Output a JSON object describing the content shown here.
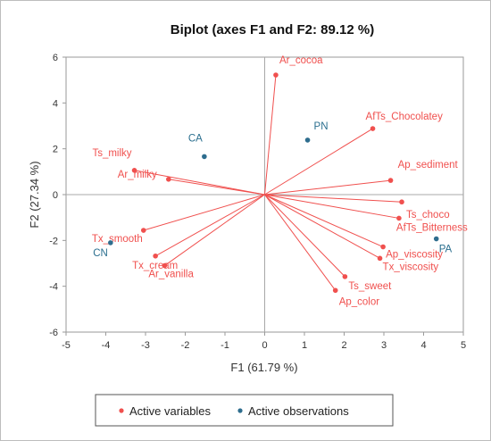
{
  "chart_data": {
    "type": "scatter",
    "title": "Biplot (axes F1 and F2: 89.12 %)",
    "xlabel": "F1 (61.79 %)",
    "ylabel": "F2 (27.34 %)",
    "xlim": [
      -5,
      5
    ],
    "ylim": [
      -6,
      6
    ],
    "xticks": [
      "-5",
      "-4",
      "-3",
      "-2",
      "-1",
      "0",
      "1",
      "2",
      "3",
      "4",
      "5"
    ],
    "yticks": [
      "6",
      "4",
      "2",
      "0",
      "-2",
      "-4",
      "-6"
    ],
    "grid": false,
    "legend_position": "bottom",
    "colors": {
      "variables": "#f0504e",
      "observations": "#2e6d8e"
    },
    "series": [
      {
        "name": "Active variables",
        "points": [
          {
            "label": "Ar_cocoa",
            "x": 0.28,
            "y": 5.22
          },
          {
            "label": "AfTs_Chocolatey",
            "x": 2.72,
            "y": 2.88
          },
          {
            "label": "Ts_milky",
            "x": -3.28,
            "y": 1.06
          },
          {
            "label": "Ar_milky",
            "x": -2.42,
            "y": 0.67
          },
          {
            "label": "Ap_sediment",
            "x": 3.17,
            "y": 0.62
          },
          {
            "label": "Ts_choco",
            "x": 3.45,
            "y": -0.32
          },
          {
            "label": "AfTs_Bitterness",
            "x": 3.38,
            "y": -1.03
          },
          {
            "label": "Tx_smooth",
            "x": -3.05,
            "y": -1.56
          },
          {
            "label": "Ap_viscosity",
            "x": 2.98,
            "y": -2.28
          },
          {
            "label": "Tx_viscosity",
            "x": 2.9,
            "y": -2.78
          },
          {
            "label": "Tx_cream",
            "x": -2.75,
            "y": -2.68
          },
          {
            "label": "Ar_vanilla",
            "x": -2.52,
            "y": -3.1
          },
          {
            "label": "Ts_sweet",
            "x": 2.02,
            "y": -3.58
          },
          {
            "label": "Ap_color",
            "x": 1.78,
            "y": -4.18
          }
        ]
      },
      {
        "name": "Active observations",
        "points": [
          {
            "label": "PN",
            "x": 1.08,
            "y": 2.38
          },
          {
            "label": "CA",
            "x": -1.52,
            "y": 1.66
          },
          {
            "label": "CN",
            "x": -3.88,
            "y": -2.1
          },
          {
            "label": "PA",
            "x": 4.32,
            "y": -1.93
          }
        ]
      }
    ]
  }
}
